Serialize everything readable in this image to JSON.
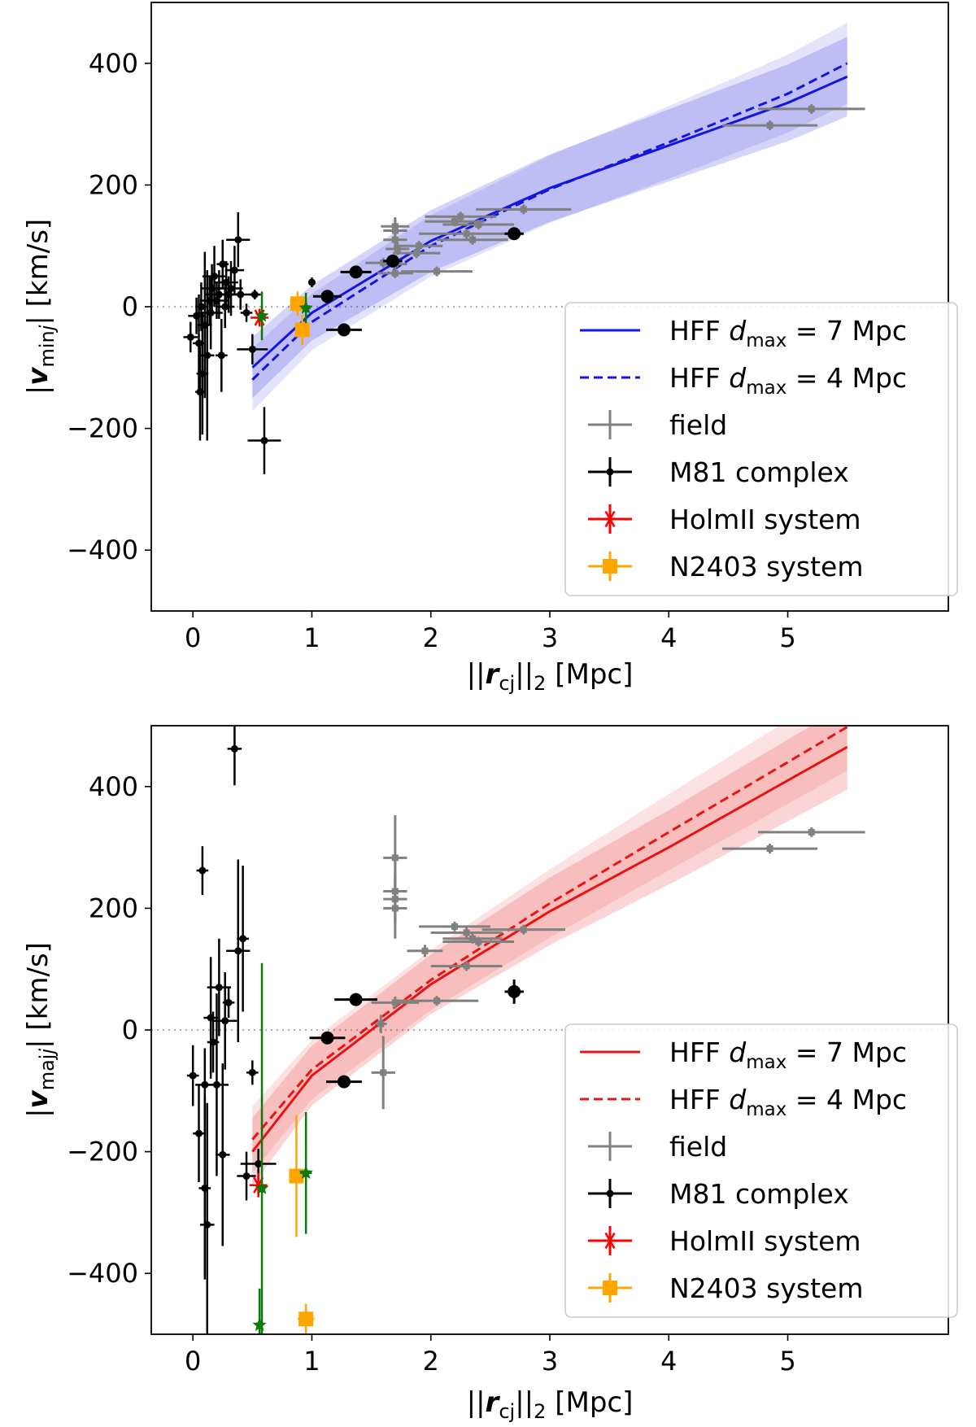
{
  "chart_data": [
    {
      "type": "scatter",
      "panel": "top",
      "xlabel": "||r_cj||_2 [Mpc]",
      "ylabel": "|v_minj| [km/s]",
      "xlim": [
        -0.35,
        6.35
      ],
      "ylim": [
        -500,
        500
      ],
      "xticks": [
        0,
        1,
        2,
        3,
        4,
        5
      ],
      "yticks": [
        -400,
        -200,
        0,
        200,
        400
      ],
      "xtick_labels": [
        "0",
        "1",
        "2",
        "3",
        "4",
        "5"
      ],
      "ytick_labels": [
        "−400",
        "−200",
        "0",
        "200",
        "400"
      ],
      "legend_position": "lower right",
      "zero_line": "dotted gray at y=0",
      "series": [
        {
          "name": "HFF d_max = 7 Mpc",
          "legend_label": "HFF",
          "kind": "curve",
          "color": "#1515e0",
          "dash": false,
          "x": [
            0.5,
            1.0,
            2.0,
            3.0,
            4.0,
            5.0,
            5.5
          ],
          "y": [
            -100,
            -10,
            108,
            195,
            265,
            335,
            378
          ]
        },
        {
          "name": "HFF d_max = 4 Mpc",
          "legend_label": "HFF",
          "kind": "curve",
          "color": "#1515e0",
          "dash": true,
          "x": [
            0.5,
            1.0,
            2.0,
            3.0,
            4.0,
            5.0,
            5.5
          ],
          "y": [
            -120,
            -25,
            100,
            193,
            270,
            350,
            400
          ]
        },
        {
          "name": "field",
          "kind": "errorbar",
          "marker": "plus",
          "color": "#808080",
          "points": [
            [
              5.2,
              325,
              0.45,
              8
            ],
            [
              4.85,
              298,
              0.4,
              8
            ],
            [
              2.78,
              160,
              0.4,
              8
            ],
            [
              2.4,
              135,
              0.3,
              8
            ],
            [
              2.3,
              120,
              0.4,
              8
            ],
            [
              2.2,
              140,
              0.25,
              8
            ],
            [
              2.35,
              110,
              0.3,
              8
            ],
            [
              2.25,
              148,
              0.3,
              8
            ],
            [
              1.9,
              100,
              0.2,
              8
            ],
            [
              1.88,
              88,
              0.2,
              8
            ],
            [
              1.7,
              132,
              0.12,
              15
            ],
            [
              1.7,
              125,
              0.1,
              20
            ],
            [
              1.7,
              110,
              0.1,
              15
            ],
            [
              1.72,
              95,
              0.1,
              10
            ],
            [
              1.7,
              70,
              0.1,
              8
            ],
            [
              1.7,
              55,
              0.15,
              8
            ],
            [
              2.05,
              58,
              0.3,
              8
            ],
            [
              1.6,
              72,
              0.15,
              8
            ]
          ]
        },
        {
          "name": "M81 complex",
          "kind": "errorbar",
          "marker": "dot",
          "color": "#000000",
          "points": [
            [
              0.05,
              -60,
              0.05,
              80
            ],
            [
              0.06,
              -140,
              0.04,
              80
            ],
            [
              0.08,
              -110,
              0.05,
              100
            ],
            [
              0.1,
              -30,
              0.06,
              120
            ],
            [
              0.12,
              -80,
              0.06,
              140
            ],
            [
              0.14,
              10,
              0.08,
              40
            ],
            [
              0.15,
              -10,
              0.1,
              60
            ],
            [
              0.16,
              30,
              0.09,
              40
            ],
            [
              0.18,
              50,
              0.1,
              50
            ],
            [
              0.2,
              10,
              0.1,
              30
            ],
            [
              0.22,
              20,
              0.12,
              40
            ],
            [
              0.24,
              -80,
              0.05,
              60
            ],
            [
              0.25,
              70,
              0.05,
              40
            ],
            [
              0.27,
              0,
              0.08,
              35
            ],
            [
              0.28,
              40,
              0.1,
              35
            ],
            [
              0.3,
              20,
              0.08,
              30
            ],
            [
              0.32,
              30,
              0.1,
              45
            ],
            [
              0.35,
              60,
              0.08,
              40
            ],
            [
              0.38,
              110,
              0.1,
              45
            ],
            [
              0.4,
              20,
              0.1,
              25
            ],
            [
              0.45,
              -10,
              0.05,
              15
            ],
            [
              0.5,
              -70,
              0.13,
              25
            ],
            [
              0.52,
              20,
              0.05,
              8
            ],
            [
              0.6,
              -220,
              0.14,
              55
            ],
            [
              1.0,
              40,
              0.03,
              8
            ],
            [
              -0.02,
              -50,
              0.06,
              25
            ],
            [
              0.07,
              0,
              0.05,
              40
            ],
            [
              0.03,
              -15,
              0.07,
              30
            ]
          ]
        },
        {
          "name": "M81 complex (large)",
          "kind": "errorbar",
          "marker": "bigdot",
          "color": "#000000",
          "points": [
            [
              2.7,
              120,
              0.08,
              8
            ],
            [
              1.68,
              75,
              0.08,
              8
            ],
            [
              1.37,
              57,
              0.13,
              8
            ],
            [
              1.13,
              17,
              0.12,
              8
            ],
            [
              1.27,
              -38,
              0.15,
              8
            ]
          ]
        },
        {
          "name": "HolmII system",
          "kind": "errorbar",
          "marker": "star",
          "color": "#ff0000",
          "points": [
            [
              0.56,
              -18,
              0.04,
              12
            ]
          ]
        },
        {
          "name": "N2403 system",
          "kind": "errorbar",
          "marker": "square",
          "color": "#ffa500",
          "points": [
            [
              0.88,
              5,
              0.06,
              20
            ],
            [
              0.92,
              -38,
              0.05,
              25
            ]
          ]
        },
        {
          "name": "green stars",
          "kind": "errorbar",
          "marker": "greenstar",
          "color": "#0a7a0a",
          "points": [
            [
              0.58,
              -15,
              0.03,
              40
            ],
            [
              0.95,
              -2,
              0.04,
              25
            ]
          ]
        }
      ],
      "legend": [
        {
          "label": "HFF",
          "math": "d_max",
          "tail": " = 7 Mpc",
          "style": "solid"
        },
        {
          "label": "HFF",
          "math": "d_max",
          "tail": " = 4 Mpc",
          "style": "dashed"
        },
        {
          "label": "field",
          "style": "plus"
        },
        {
          "label": "M81 complex",
          "style": "dot"
        },
        {
          "label": "HolmII system",
          "style": "star"
        },
        {
          "label": "N2403 system",
          "style": "square"
        }
      ]
    },
    {
      "type": "scatter",
      "panel": "bottom",
      "xlabel": "||r_cj||_2 [Mpc]",
      "ylabel": "|v_majj| [km/s]",
      "xlim": [
        -0.35,
        6.35
      ],
      "ylim": [
        -500,
        500
      ],
      "xticks": [
        0,
        1,
        2,
        3,
        4,
        5
      ],
      "yticks": [
        -400,
        -200,
        0,
        200,
        400
      ],
      "xtick_labels": [
        "0",
        "1",
        "2",
        "3",
        "4",
        "5"
      ],
      "ytick_labels": [
        "−400",
        "−200",
        "0",
        "200",
        "400"
      ],
      "legend_position": "lower right",
      "zero_line": "dotted gray at y=0",
      "series": [
        {
          "name": "HFF d_max = 7 Mpc",
          "legend_label": "HFF",
          "kind": "curve",
          "color": "#e81414",
          "dash": false,
          "x": [
            0.5,
            1.0,
            2.0,
            3.0,
            4.0,
            5.0,
            5.5
          ],
          "y": [
            -200,
            -75,
            75,
            195,
            300,
            410,
            465
          ]
        },
        {
          "name": "HFF d_max = 4 Mpc",
          "legend_label": "HFF",
          "kind": "curve",
          "color": "#e81414",
          "dash": true,
          "x": [
            0.5,
            1.0,
            2.0,
            3.0,
            4.0,
            5.0,
            5.5
          ],
          "y": [
            -180,
            -65,
            82,
            208,
            325,
            440,
            498
          ]
        },
        {
          "name": "field",
          "kind": "errorbar",
          "marker": "plus",
          "color": "#808080",
          "points": [
            [
              5.2,
              325,
              0.45,
              8
            ],
            [
              4.85,
              298,
              0.4,
              8
            ],
            [
              2.78,
              165,
              0.35,
              8
            ],
            [
              2.4,
              145,
              0.3,
              8
            ],
            [
              2.3,
              160,
              0.3,
              10
            ],
            [
              2.3,
              105,
              0.3,
              8
            ],
            [
              2.35,
              150,
              0.25,
              8
            ],
            [
              2.2,
              170,
              0.3,
              8
            ],
            [
              1.95,
              130,
              0.15,
              10
            ],
            [
              1.7,
              283,
              0.1,
              70
            ],
            [
              1.7,
              228,
              0.1,
              50
            ],
            [
              1.7,
              200,
              0.1,
              50
            ],
            [
              1.7,
              215,
              0.1,
              40
            ],
            [
              1.7,
              45,
              0.2,
              10
            ],
            [
              2.05,
              48,
              0.35,
              8
            ],
            [
              1.6,
              -70,
              0.1,
              60
            ],
            [
              1.58,
              10,
              0.05,
              15
            ]
          ]
        },
        {
          "name": "M81 complex",
          "kind": "errorbar",
          "marker": "dot",
          "color": "#000000",
          "points": [
            [
              0.05,
              -170,
              0.05,
              80
            ],
            [
              0.08,
              262,
              0.05,
              40
            ],
            [
              0.1,
              -260,
              0.05,
              150
            ],
            [
              0.12,
              -320,
              0.06,
              200
            ],
            [
              0.15,
              20,
              0.06,
              100
            ],
            [
              0.17,
              -20,
              0.05,
              50
            ],
            [
              0.2,
              -90,
              0.1,
              150
            ],
            [
              0.22,
              70,
              0.1,
              80
            ],
            [
              0.25,
              -205,
              0.06,
              150
            ],
            [
              0.27,
              15,
              0.1,
              80
            ],
            [
              0.3,
              45,
              0.05,
              25
            ],
            [
              0.35,
              462,
              0.06,
              60
            ],
            [
              0.38,
              130,
              0.1,
              150
            ],
            [
              0.42,
              150,
              0.05,
              120
            ],
            [
              0.45,
              -240,
              0.08,
              40
            ],
            [
              0.5,
              -70,
              0.05,
              20
            ],
            [
              0.55,
              -220,
              0.15,
              25
            ],
            [
              0.0,
              -75,
              0.05,
              50
            ],
            [
              0.1,
              -90,
              0.08,
              60
            ]
          ]
        },
        {
          "name": "M81 complex (large)",
          "kind": "errorbar",
          "marker": "bigdot",
          "color": "#000000",
          "points": [
            [
              2.7,
              63,
              0.08,
              20
            ],
            [
              1.37,
              50,
              0.18,
              8
            ],
            [
              1.13,
              -13,
              0.15,
              8
            ],
            [
              1.27,
              -85,
              0.15,
              8
            ]
          ]
        },
        {
          "name": "HolmII system",
          "kind": "errorbar",
          "marker": "star",
          "color": "#ff0000",
          "points": [
            [
              0.55,
              -255,
              0.06,
              20
            ]
          ]
        },
        {
          "name": "N2403 system",
          "kind": "errorbar",
          "marker": "square",
          "color": "#ffa500",
          "points": [
            [
              0.87,
              -240,
              0.06,
              100
            ],
            [
              0.95,
              -475,
              0.07,
              25
            ]
          ]
        },
        {
          "name": "green stars",
          "kind": "errorbar",
          "marker": "greenstar",
          "color": "#0a7a0a",
          "points": [
            [
              0.56,
              -485,
              0.03,
              60
            ],
            [
              0.58,
              -260,
              0.03,
              370
            ],
            [
              0.95,
              -235,
              0.05,
              100
            ]
          ]
        }
      ],
      "legend": [
        {
          "label": "HFF",
          "math": "d_max",
          "tail": " = 7 Mpc",
          "style": "solid"
        },
        {
          "label": "HFF",
          "math": "d_max",
          "tail": " = 4 Mpc",
          "style": "dashed"
        },
        {
          "label": "field",
          "style": "plus"
        },
        {
          "label": "M81 complex",
          "style": "dot"
        },
        {
          "label": "HolmII system",
          "style": "star"
        },
        {
          "label": "N2403 system",
          "style": "square"
        }
      ]
    }
  ]
}
